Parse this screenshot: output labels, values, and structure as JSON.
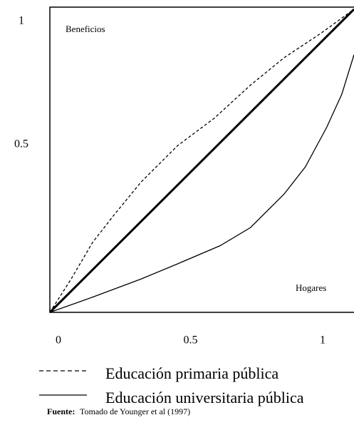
{
  "chart_data": {
    "type": "line",
    "annotations": [
      "Beneficios",
      "Hogares"
    ],
    "xlim": [
      0,
      1
    ],
    "ylim": [
      0,
      1
    ],
    "xticks": [
      0,
      0.5,
      1
    ],
    "yticks": [
      0.5,
      1
    ],
    "series": [
      {
        "name": "Educación primaria pública",
        "color": "#000000",
        "dash": true,
        "x": [
          0,
          0.07,
          0.14,
          0.21,
          0.3,
          0.42,
          0.54,
          0.66,
          0.77,
          0.89,
          1
        ],
        "values": [
          0,
          0.11,
          0.23,
          0.32,
          0.43,
          0.55,
          0.64,
          0.75,
          0.84,
          0.92,
          1
        ]
      },
      {
        "name": "Educación universitaria pública",
        "color": "#000000",
        "dash": false,
        "x": [
          0,
          0.14,
          0.3,
          0.42,
          0.56,
          0.66,
          0.77,
          0.84,
          0.91,
          0.96,
          1
        ],
        "values": [
          0,
          0.05,
          0.11,
          0.16,
          0.22,
          0.28,
          0.39,
          0.48,
          0.61,
          0.72,
          0.85
        ]
      },
      {
        "color": "#000000",
        "dash": false,
        "width": 3,
        "x": [
          0,
          1
        ],
        "values": [
          0,
          1
        ]
      }
    ],
    "source_label": "Fuente:",
    "source": "Tomado de Younger et al (1997)"
  }
}
